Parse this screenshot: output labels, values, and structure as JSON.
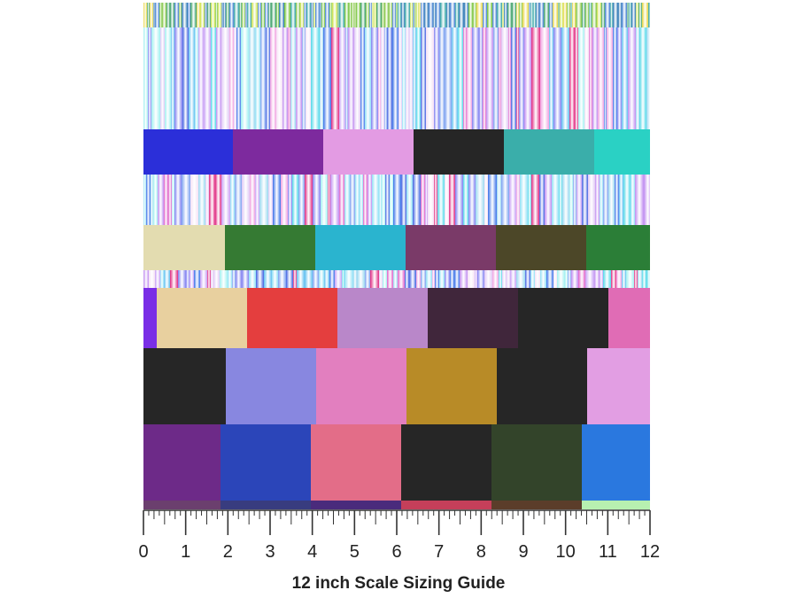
{
  "caption": "12 inch Scale Sizing Guide",
  "ruler": {
    "labels": [
      "0",
      "1",
      "2",
      "3",
      "4",
      "5",
      "6",
      "7",
      "8",
      "9",
      "10",
      "11",
      "12"
    ]
  },
  "swatch_colors": {
    "row1": [
      "#2b2fd9",
      "#7d2a9e",
      "#e39be3",
      "#262626",
      "#3aaeaa",
      "#2ad1c4"
    ],
    "row2": [
      "#e3dcb0",
      "#357a33",
      "#2ab4cf",
      "#7a3a68",
      "#4c4728",
      "#2b7e37"
    ],
    "row3": [
      "#7a2ee6",
      "#e8d09f",
      "#e43e3e",
      "#b987c9",
      "#40263b",
      "#262626",
      "#e06cb5"
    ],
    "row4": [
      "#262626",
      "#8887e0",
      "#e27fbf",
      "#b88b27",
      "#262626",
      "#e29ee3"
    ],
    "row5": [
      "#6d2a88",
      "#2b45b9",
      "#e36d88",
      "#262626",
      "#33442a",
      "#2a78df"
    ],
    "bottom_strip": [
      "#6b3f6e",
      "#383c7f",
      "#4a2b7c",
      "#c53f5a",
      "#5b3d2a",
      "#b7f0b0"
    ],
    "stripe_palette": [
      "#9ad8f0",
      "#c08cf0",
      "#8fe0f5",
      "#f0a0e0",
      "#7ba0f0",
      "#e0c8f5",
      "#60c0f0",
      "#e060c8",
      "#4060e0",
      "#a0f0f0",
      "#f5e0f5",
      "#8080f0",
      "#e02880",
      "#50d8e8",
      "#c8a0f5",
      "#3870e8"
    ],
    "top_band_palette": [
      "#7ec23a",
      "#2f9a5e",
      "#c8e040",
      "#3a7ad0",
      "#e6d43a",
      "#2aa0a0",
      "#6ac02a",
      "#1f6fb0"
    ]
  }
}
